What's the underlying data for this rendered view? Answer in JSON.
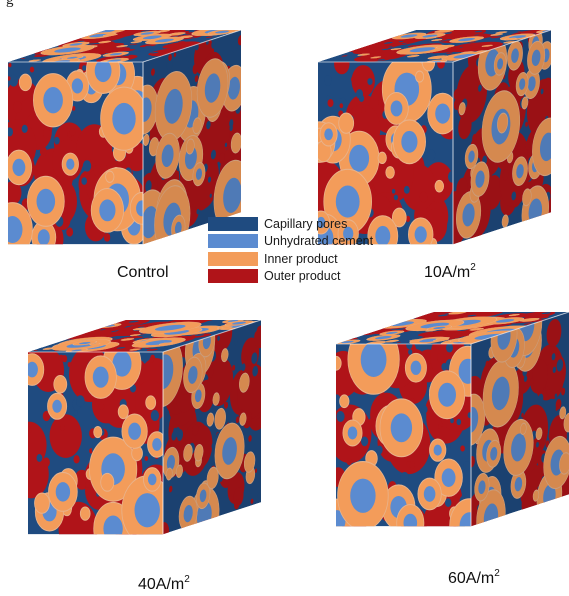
{
  "top_fragment": "g",
  "panels": [
    {
      "id": "control",
      "label": "Control",
      "label_sup": ""
    },
    {
      "id": "10",
      "label": "10A/m",
      "label_sup": "2"
    },
    {
      "id": "40",
      "label": "40A/m",
      "label_sup": "2"
    },
    {
      "id": "60",
      "label": "60A/m",
      "label_sup": "2"
    }
  ],
  "legend": [
    {
      "label": "Capillary pores",
      "color": "#1f4b80"
    },
    {
      "label": "Unhydrated cement",
      "color": "#5b8bd0"
    },
    {
      "label": "Inner product",
      "color": "#f39c5a"
    },
    {
      "label": "Outer product",
      "color": "#b01419"
    }
  ]
}
